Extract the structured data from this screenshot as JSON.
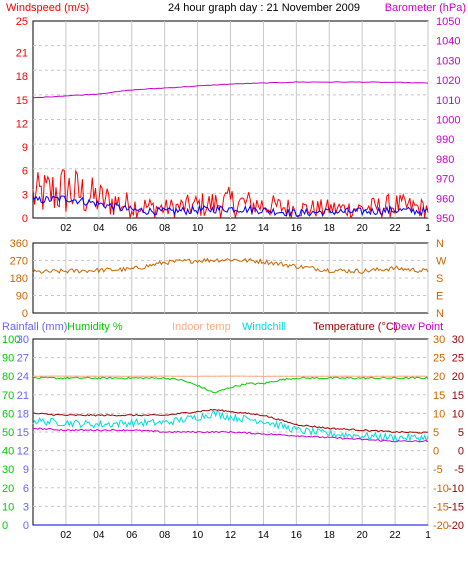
{
  "title": "24 hour graph day : 21 November 2009",
  "colors": {
    "wind_gust": "#ff0000",
    "wind_avg": "#0000ff",
    "barometer": "#cc00cc",
    "direction": "#cc6600",
    "rain": "#6666ff",
    "humidity": "#00cc00",
    "indoor": "#ffaa88",
    "windchill": "#00dddd",
    "temperature": "#990000",
    "dewpoint": "#cc00cc",
    "grid": "#c8c8c8",
    "plot_bg": "#ffffff"
  },
  "x_axis": {
    "ticks": [
      "02",
      "04",
      "06",
      "08",
      "10",
      "12",
      "14",
      "16",
      "18",
      "20",
      "22",
      "1"
    ]
  },
  "chart_data": [
    {
      "type": "line",
      "title": "",
      "left_axis": {
        "label": "Windspeed (m/s)",
        "ticks": [
          "0",
          "3",
          "6",
          "9",
          "12",
          "15",
          "18",
          "21",
          "25"
        ],
        "ylim": [
          0,
          25
        ]
      },
      "right_axis": {
        "label": "Barometer (hPa)",
        "ticks": [
          "950",
          "960",
          "970",
          "980",
          "990",
          "1000",
          "1010",
          "1020",
          "1030",
          "1040",
          "1050"
        ],
        "ylim": [
          950,
          1050
        ]
      },
      "grid": true,
      "series": [
        {
          "name": "Windspeed gust",
          "x": [
            0,
            2,
            4,
            6,
            8,
            10,
            12,
            14,
            16,
            18,
            20,
            22,
            24
          ],
          "values": [
            3.5,
            4.5,
            3.0,
            2.0,
            1.5,
            2.0,
            2.5,
            2.0,
            1.5,
            1.5,
            1.5,
            2.0,
            1.5
          ]
        },
        {
          "name": "Windspeed average",
          "x": [
            0,
            2,
            4,
            6,
            8,
            10,
            12,
            14,
            16,
            18,
            20,
            22,
            24
          ],
          "values": [
            2.2,
            2.5,
            1.8,
            1.0,
            0.8,
            1.0,
            1.2,
            1.0,
            0.6,
            0.8,
            0.8,
            1.0,
            0.8
          ]
        },
        {
          "name": "Barometer",
          "x": [
            0,
            2,
            4,
            6,
            8,
            10,
            12,
            14,
            16,
            18,
            20,
            22,
            24
          ],
          "values": [
            1011,
            1012,
            1013,
            1015,
            1016,
            1017,
            1018,
            1018.5,
            1019,
            1019,
            1019,
            1018.8,
            1018.5
          ]
        }
      ]
    },
    {
      "type": "line",
      "title": "",
      "left_axis": {
        "ticks": [
          "0",
          "90",
          "180",
          "270",
          "360"
        ],
        "ylim": [
          0,
          360
        ]
      },
      "right_axis": {
        "ticks": [
          "N",
          "E",
          "S",
          "W",
          "N"
        ]
      },
      "grid": true,
      "series": [
        {
          "name": "Wind direction",
          "x": [
            0,
            2,
            4,
            6,
            8,
            10,
            12,
            14,
            16,
            18,
            20,
            22,
            24
          ],
          "values": [
            210,
            215,
            220,
            225,
            260,
            270,
            275,
            265,
            240,
            220,
            215,
            230,
            215
          ]
        }
      ]
    },
    {
      "type": "line",
      "title": "",
      "legend": [
        "Rainfall (mm)",
        "Humidity %",
        "Indoor temp",
        "Windchill",
        "Temperature (°C)",
        "Dew Point"
      ],
      "rain_axis": {
        "label": "Rainfall (mm)",
        "ticks": [
          "0",
          "3",
          "6",
          "9",
          "12",
          "15",
          "18",
          "21",
          "24",
          "27",
          "30"
        ],
        "ylim": [
          0,
          30
        ]
      },
      "humidity_axis": {
        "label": "Humidity %",
        "ticks": [
          "0",
          "10",
          "20",
          "30",
          "40",
          "50",
          "60",
          "70",
          "80",
          "90",
          "100"
        ],
        "ylim": [
          0,
          100
        ]
      },
      "temp_axis_inner": {
        "ticks": [
          "-20",
          "-15",
          "-10",
          "-5",
          "0",
          "5",
          "10",
          "15",
          "20",
          "25",
          "30"
        ],
        "ylim": [
          -20,
          30
        ]
      },
      "temp_axis_outer": {
        "label": "Temperature (°C)",
        "ticks": [
          "-20",
          "-15",
          "-10",
          "-5",
          "0",
          "5",
          "10",
          "15",
          "20",
          "25",
          "30"
        ],
        "ylim": [
          -20,
          30
        ]
      },
      "grid": true,
      "series": [
        {
          "name": "Indoor temp",
          "x": [
            0,
            2,
            4,
            6,
            8,
            10,
            12,
            14,
            16,
            18,
            20,
            22,
            24
          ],
          "values": [
            20,
            20,
            20,
            20,
            20,
            20,
            20,
            20,
            20,
            20,
            20,
            20,
            20
          ]
        },
        {
          "name": "Humidity %",
          "x": [
            0,
            2,
            4,
            6,
            8,
            9,
            10,
            11,
            12,
            13,
            14,
            15,
            16,
            18,
            20,
            22,
            24
          ],
          "values": [
            79,
            79,
            79,
            79,
            79,
            78,
            75,
            71,
            74,
            76,
            76,
            78,
            79,
            79,
            79,
            79,
            79
          ]
        },
        {
          "name": "Temperature (°C)",
          "x": [
            0,
            2,
            4,
            6,
            8,
            10,
            11,
            12,
            14,
            16,
            18,
            20,
            22,
            24
          ],
          "values": [
            10,
            9.5,
            9.5,
            9.5,
            9.5,
            10.5,
            11,
            10.5,
            9.5,
            7,
            6,
            5.5,
            5,
            4.8
          ]
        },
        {
          "name": "Windchill",
          "x": [
            0,
            2,
            4,
            6,
            8,
            10,
            11,
            12,
            14,
            16,
            18,
            20,
            22,
            24
          ],
          "values": [
            8,
            7.5,
            7,
            7.5,
            7.5,
            9,
            10,
            9,
            8,
            5.5,
            4.5,
            4,
            3.5,
            3.5
          ]
        },
        {
          "name": "Dew Point",
          "x": [
            0,
            2,
            4,
            6,
            8,
            10,
            12,
            14,
            16,
            18,
            20,
            22,
            24
          ],
          "values": [
            6,
            5.5,
            5.5,
            5.5,
            5,
            5,
            5,
            4.5,
            4,
            3.5,
            3,
            2.5,
            2.5
          ]
        },
        {
          "name": "Rainfall (mm)",
          "x": [
            0,
            24
          ],
          "values": [
            0,
            0
          ]
        }
      ]
    }
  ]
}
